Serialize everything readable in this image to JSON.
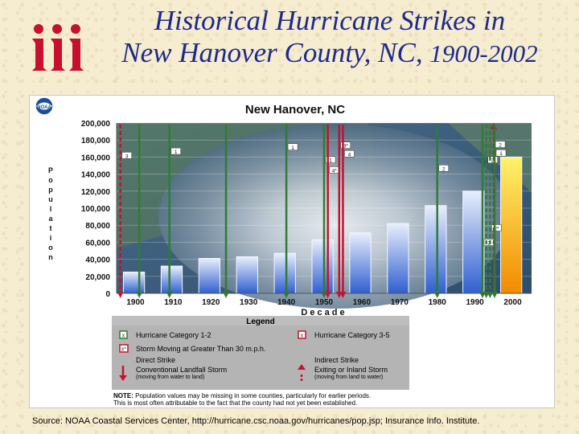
{
  "slide": {
    "title_line1": "Historical Hurricane Strikes in",
    "title_line2": "New Hanover County, NC,",
    "title_years": "1900-2002",
    "source": "Source: NOAA Coastal Services Center, http://hurricane.csc.noaa.gov/hurricanes/pop.jsp; Insurance Info. Institute."
  },
  "chart_data": {
    "type": "bar",
    "title": "New Hanover, NC",
    "logo_text": "NOAA",
    "xlabel": "Decade",
    "ylabel": "Population",
    "ylim": [
      0,
      200000
    ],
    "y_ticks": [
      0,
      20000,
      40000,
      60000,
      80000,
      100000,
      120000,
      140000,
      160000,
      180000,
      200000
    ],
    "y_tick_labels": [
      "0",
      "20,000",
      "40,000",
      "60,000",
      "80,000",
      "100,000",
      "120,000",
      "140,000",
      "160,000",
      "180,000",
      "200,000"
    ],
    "categories": [
      "1900",
      "1910",
      "1920",
      "1930",
      "1940",
      "1950",
      "1960",
      "1970",
      "1980",
      "1990",
      "2000"
    ],
    "values": [
      25000,
      32000,
      41000,
      43000,
      47000,
      63000,
      71000,
      82000,
      103000,
      120000,
      160000
    ],
    "strikes": [
      {
        "x": 1900.5,
        "color": "#c8102e",
        "style": "dashed",
        "dir": "down",
        "label": "3",
        "label_y": 160000
      },
      {
        "x": 1905.5,
        "color": "#2e7d32",
        "style": "solid",
        "dir": "down",
        "label": "",
        "label_y": null
      },
      {
        "x": 1913.5,
        "color": "#2e7d32",
        "style": "solid",
        "dir": "down",
        "label": "1",
        "label_y": 165000
      },
      {
        "x": 1928.5,
        "color": "#2e7d32",
        "style": "solid",
        "dir": "down",
        "label": "",
        "label_y": null
      },
      {
        "x": 1944.5,
        "color": "#2e7d32",
        "style": "solid",
        "dir": "down",
        "label": "1",
        "label_y": 170000
      },
      {
        "x": 1954.5,
        "color": "#2e7d32",
        "style": "solid",
        "dir": "down",
        "label": "1",
        "label_y": 155000
      },
      {
        "x": 1955.5,
        "color": "#c8102e",
        "style": "solid",
        "dir": "down",
        "label": "4*",
        "label_y": 143000
      },
      {
        "x": 1958.5,
        "color": "#c8102e",
        "style": "solid",
        "dir": "down",
        "label": "3*",
        "label_y": 172000
      },
      {
        "x": 1959.5,
        "color": "#c8102e",
        "style": "solid",
        "dir": "down",
        "label": "4",
        "label_y": 162000
      },
      {
        "x": 1984.5,
        "color": "#2e7d32",
        "style": "solid",
        "dir": "down",
        "label": "2",
        "label_y": 145000
      },
      {
        "x": 1996.5,
        "color": "#2e7d32",
        "style": "solid",
        "dir": "down",
        "label": "3",
        "label_y": 58000
      },
      {
        "x": 1997.5,
        "color": "#2e7d32",
        "style": "dashed",
        "dir": "down",
        "label": "2",
        "label_y": 155000
      },
      {
        "x": 1998.5,
        "color": "#2e7d32",
        "style": "dashed",
        "dir": "down",
        "label": "2*",
        "label_y": 75000
      },
      {
        "x": 1999.5,
        "color": "#c8102e",
        "style": "dashed",
        "dir": "up",
        "label": "2",
        "label_y": 173000
      },
      {
        "x": 1999.7,
        "color": "#2e7d32",
        "style": "solid",
        "dir": "down",
        "label": "1",
        "label_y": 163000
      }
    ],
    "legend": {
      "title": "Legend",
      "cat12": "Hurricane Category 1-2",
      "cat35": "Hurricane Category 3-5",
      "fast": "Storm Moving at Greater Than 30 m.p.h.",
      "direct": "Direct Strike",
      "indirect": "Indirect Strike",
      "conv": "Conventional Landfall Storm",
      "conv_sub": "(moving from water to land)",
      "exit": "Exiting or Inland Storm",
      "exit_sub": "(moving from land to water)",
      "note_label": "NOTE:",
      "note1": "Population values may be missing in some counties, particularly for earlier periods.",
      "note2": "This is most often attributable to the fact that the county had not yet been established."
    },
    "colors": {
      "green": "#2e7d32",
      "red": "#c8102e",
      "bar_top": "#e8eefc",
      "bar_bottom": "#2f5fcf",
      "bar_last_top": "#fff36b",
      "bar_last_bottom": "#f28a00"
    }
  }
}
